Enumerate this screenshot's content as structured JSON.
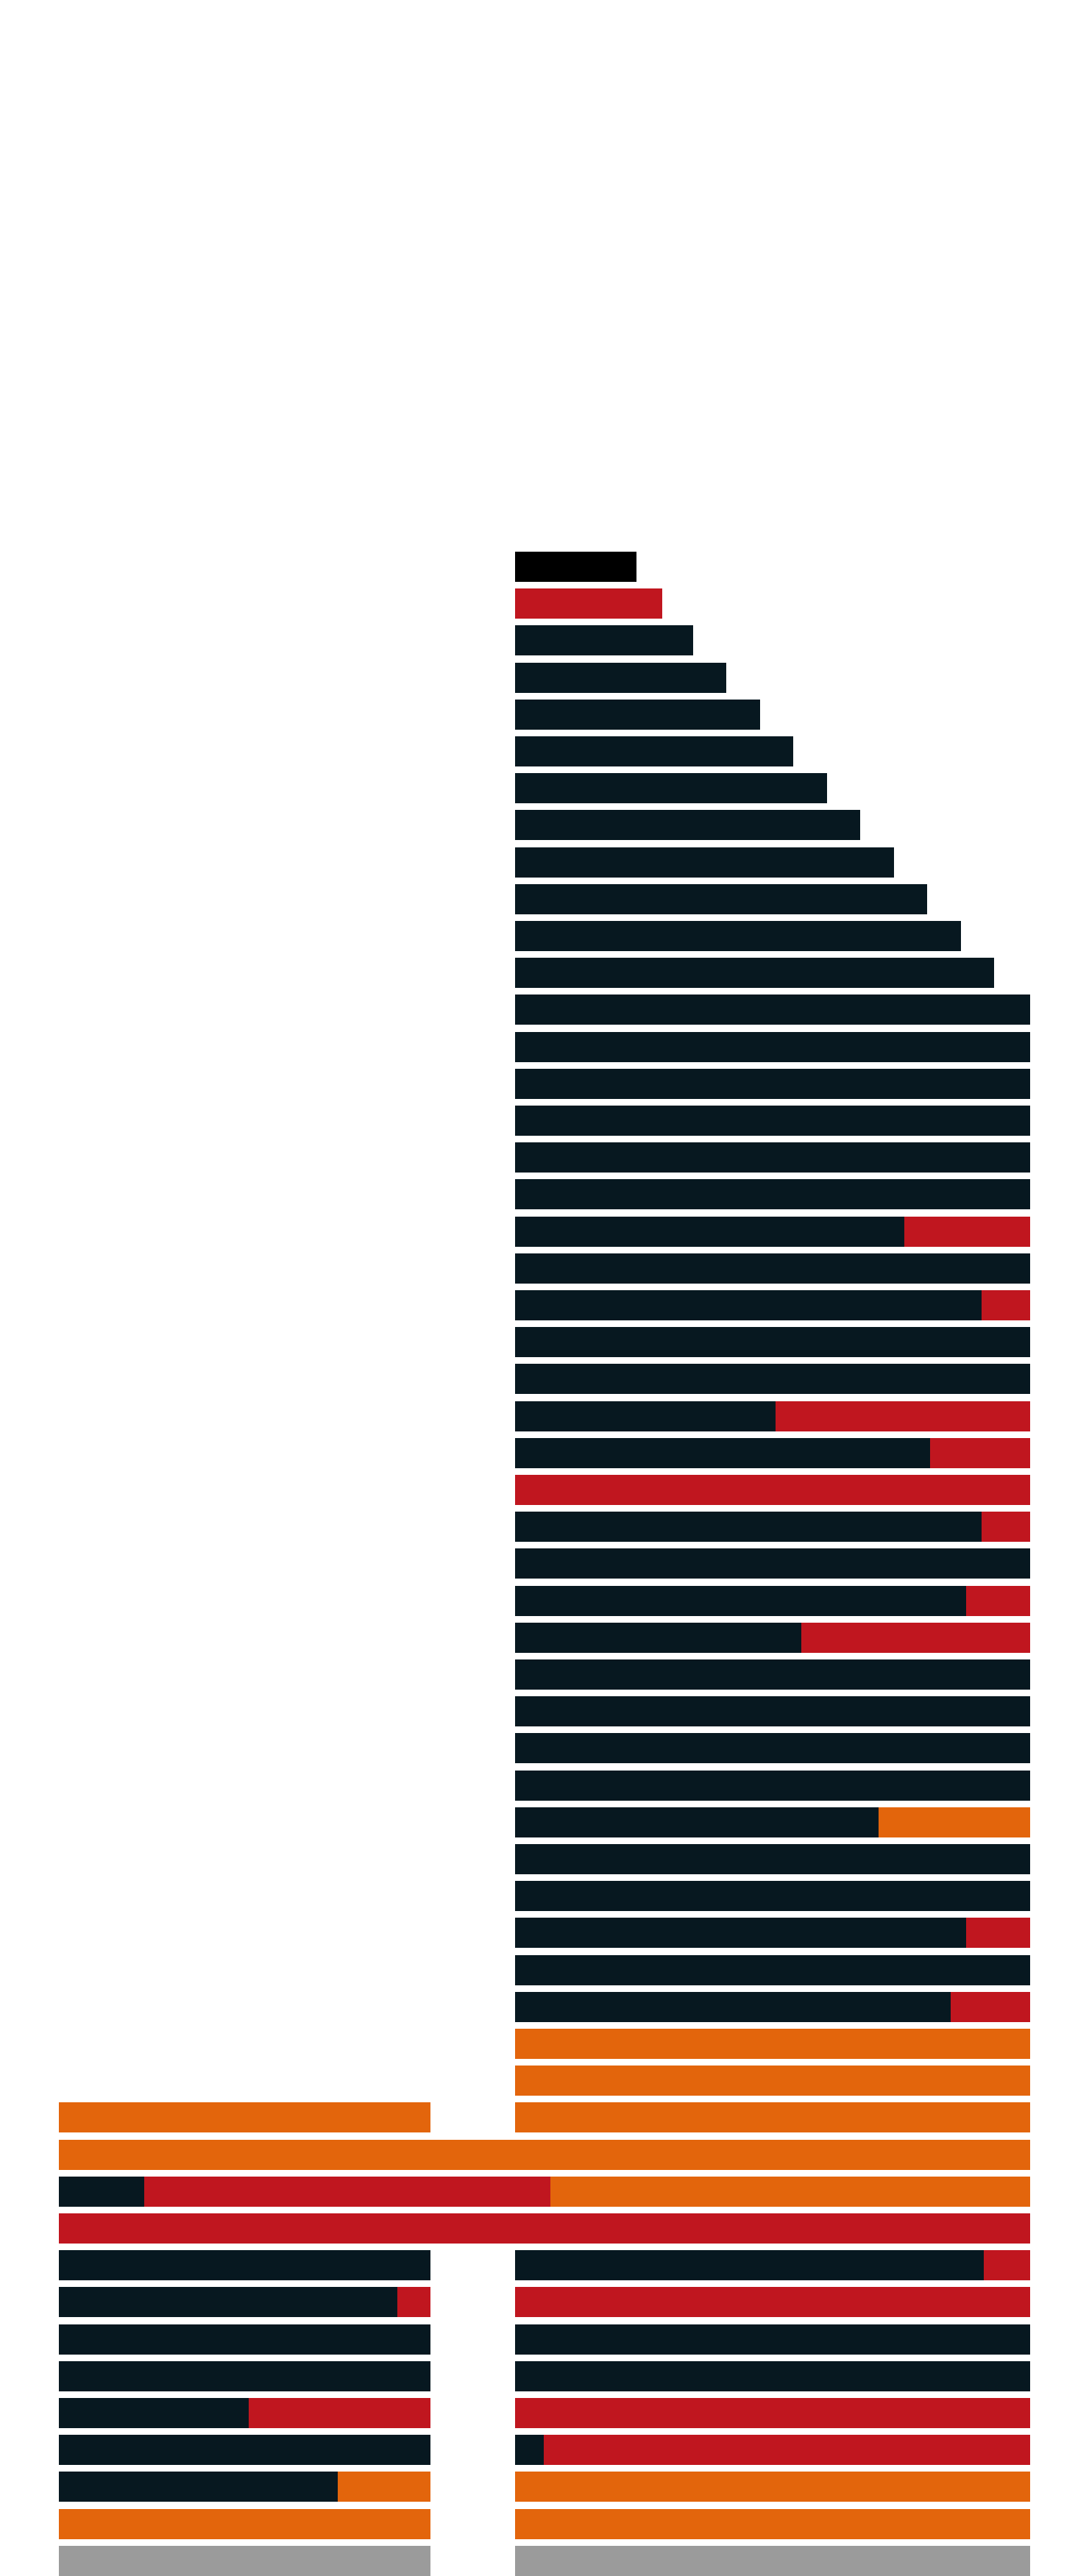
{
  "palette": {
    "dark": "#071820",
    "black": "#000000",
    "red": "#c0161f",
    "orange": "#e3650c",
    "gray": "#9b9b9b",
    "background": "#ffffff"
  },
  "tower_floors": [
    {
      "extent": 0.235,
      "segments": [
        {
          "color": "black",
          "fraction": 1
        }
      ]
    },
    {
      "extent": 0.285,
      "segments": [
        {
          "color": "red",
          "fraction": 1
        }
      ]
    },
    {
      "extent": 0.345,
      "segments": [
        {
          "color": "dark",
          "fraction": 1
        }
      ]
    },
    {
      "extent": 0.41,
      "segments": [
        {
          "color": "dark",
          "fraction": 1
        }
      ]
    },
    {
      "extent": 0.475,
      "segments": [
        {
          "color": "dark",
          "fraction": 1
        }
      ]
    },
    {
      "extent": 0.54,
      "segments": [
        {
          "color": "dark",
          "fraction": 1
        }
      ]
    },
    {
      "extent": 0.605,
      "segments": [
        {
          "color": "dark",
          "fraction": 1
        }
      ]
    },
    {
      "extent": 0.67,
      "segments": [
        {
          "color": "dark",
          "fraction": 1
        }
      ]
    },
    {
      "extent": 0.735,
      "segments": [
        {
          "color": "dark",
          "fraction": 1
        }
      ]
    },
    {
      "extent": 0.8,
      "segments": [
        {
          "color": "dark",
          "fraction": 1
        }
      ]
    },
    {
      "extent": 0.865,
      "segments": [
        {
          "color": "dark",
          "fraction": 1
        }
      ]
    },
    {
      "extent": 0.93,
      "segments": [
        {
          "color": "dark",
          "fraction": 1
        }
      ]
    },
    {
      "extent": 1,
      "segments": [
        {
          "color": "dark",
          "fraction": 1
        }
      ]
    },
    {
      "extent": 1,
      "segments": [
        {
          "color": "dark",
          "fraction": 1
        }
      ]
    },
    {
      "extent": 1,
      "segments": [
        {
          "color": "dark",
          "fraction": 1
        }
      ]
    },
    {
      "extent": 1,
      "segments": [
        {
          "color": "dark",
          "fraction": 1
        }
      ]
    },
    {
      "extent": 1,
      "segments": [
        {
          "color": "dark",
          "fraction": 1
        }
      ]
    },
    {
      "extent": 1,
      "segments": [
        {
          "color": "dark",
          "fraction": 1
        }
      ]
    },
    {
      "extent": 1,
      "segments": [
        {
          "color": "dark",
          "fraction": 0.755
        },
        {
          "color": "red",
          "fraction": 0.245
        }
      ]
    },
    {
      "extent": 1,
      "segments": [
        {
          "color": "dark",
          "fraction": 1
        }
      ]
    },
    {
      "extent": 1,
      "segments": [
        {
          "color": "dark",
          "fraction": 0.905
        },
        {
          "color": "red",
          "fraction": 0.095
        }
      ]
    },
    {
      "extent": 1,
      "segments": [
        {
          "color": "dark",
          "fraction": 1
        }
      ]
    },
    {
      "extent": 1,
      "segments": [
        {
          "color": "dark",
          "fraction": 1
        }
      ]
    },
    {
      "extent": 1,
      "segments": [
        {
          "color": "dark",
          "fraction": 0.505
        },
        {
          "color": "red",
          "fraction": 0.495
        }
      ]
    },
    {
      "extent": 1,
      "segments": [
        {
          "color": "dark",
          "fraction": 0.805
        },
        {
          "color": "red",
          "fraction": 0.195
        }
      ]
    },
    {
      "extent": 1,
      "segments": [
        {
          "color": "red",
          "fraction": 1
        }
      ]
    },
    {
      "extent": 1,
      "segments": [
        {
          "color": "dark",
          "fraction": 0.905
        },
        {
          "color": "red",
          "fraction": 0.095
        }
      ]
    },
    {
      "extent": 1,
      "segments": [
        {
          "color": "dark",
          "fraction": 1
        }
      ]
    },
    {
      "extent": 1,
      "segments": [
        {
          "color": "dark",
          "fraction": 0.875
        },
        {
          "color": "red",
          "fraction": 0.125
        }
      ]
    },
    {
      "extent": 1,
      "segments": [
        {
          "color": "dark",
          "fraction": 0.555
        },
        {
          "color": "red",
          "fraction": 0.445
        }
      ]
    },
    {
      "extent": 1,
      "segments": [
        {
          "color": "dark",
          "fraction": 1
        }
      ]
    },
    {
      "extent": 1,
      "segments": [
        {
          "color": "dark",
          "fraction": 1
        }
      ]
    },
    {
      "extent": 1,
      "segments": [
        {
          "color": "dark",
          "fraction": 1
        }
      ]
    },
    {
      "extent": 1,
      "segments": [
        {
          "color": "dark",
          "fraction": 1
        }
      ]
    },
    {
      "extent": 1,
      "segments": [
        {
          "color": "dark",
          "fraction": 0.705
        },
        {
          "color": "orange",
          "fraction": 0.295
        }
      ]
    },
    {
      "extent": 1,
      "segments": [
        {
          "color": "dark",
          "fraction": 1
        }
      ]
    },
    {
      "extent": 1,
      "segments": [
        {
          "color": "dark",
          "fraction": 1
        }
      ]
    },
    {
      "extent": 1,
      "segments": [
        {
          "color": "dark",
          "fraction": 0.875
        },
        {
          "color": "red",
          "fraction": 0.125
        }
      ]
    },
    {
      "extent": 1,
      "segments": [
        {
          "color": "dark",
          "fraction": 1
        }
      ]
    },
    {
      "extent": 1,
      "segments": [
        {
          "color": "dark",
          "fraction": 0.845
        },
        {
          "color": "red",
          "fraction": 0.155
        }
      ]
    },
    {
      "extent": 1,
      "segments": [
        {
          "color": "orange",
          "fraction": 1
        }
      ]
    },
    {
      "extent": 1,
      "segments": [
        {
          "color": "orange",
          "fraction": 1
        }
      ]
    }
  ],
  "lower_floors": [
    {
      "left": [
        {
          "color": "orange",
          "fraction": 1
        }
      ],
      "right": [
        {
          "color": "orange",
          "fraction": 1
        }
      ]
    },
    {
      "full": [
        {
          "color": "orange",
          "fraction": 1
        }
      ]
    },
    {
      "full": [
        {
          "color": "dark",
          "fraction": 0.088
        },
        {
          "color": "red",
          "fraction": 0.418
        },
        {
          "color": "orange",
          "fraction": 0.494
        }
      ]
    },
    {
      "full": [
        {
          "color": "red",
          "fraction": 1
        }
      ]
    },
    {
      "left": [
        {
          "color": "dark",
          "fraction": 1
        }
      ],
      "right": [
        {
          "color": "dark",
          "fraction": 0.91
        },
        {
          "color": "red",
          "fraction": 0.09
        }
      ]
    },
    {
      "left": [
        {
          "color": "dark",
          "fraction": 0.91
        },
        {
          "color": "red",
          "fraction": 0.09
        }
      ],
      "right": [
        {
          "color": "red",
          "fraction": 1
        }
      ]
    },
    {
      "left": [
        {
          "color": "dark",
          "fraction": 1
        }
      ],
      "right": [
        {
          "color": "dark",
          "fraction": 1
        }
      ]
    },
    {
      "left": [
        {
          "color": "dark",
          "fraction": 1
        }
      ],
      "right": [
        {
          "color": "dark",
          "fraction": 1
        }
      ]
    },
    {
      "left": [
        {
          "color": "dark",
          "fraction": 0.51
        },
        {
          "color": "red",
          "fraction": 0.49
        }
      ],
      "right": [
        {
          "color": "red",
          "fraction": 1
        }
      ]
    },
    {
      "left": [
        {
          "color": "dark",
          "fraction": 1
        }
      ],
      "right": [
        {
          "color": "dark",
          "fraction": 0.055
        },
        {
          "color": "red",
          "fraction": 0.945
        }
      ]
    },
    {
      "left": [
        {
          "color": "dark",
          "fraction": 0.75
        },
        {
          "color": "orange",
          "fraction": 0.25
        }
      ],
      "right": [
        {
          "color": "orange",
          "fraction": 1
        }
      ]
    },
    {
      "left": [
        {
          "color": "orange",
          "fraction": 1
        }
      ],
      "right": [
        {
          "color": "orange",
          "fraction": 1
        }
      ]
    },
    {
      "left": [
        {
          "color": "gray",
          "fraction": 1
        }
      ],
      "right": [
        {
          "color": "gray",
          "fraction": 1
        }
      ]
    }
  ]
}
